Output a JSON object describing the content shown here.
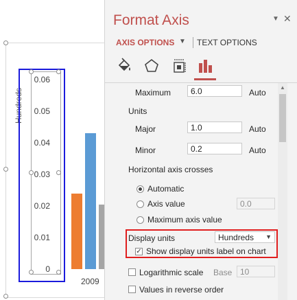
{
  "chart": {
    "axis_units_label": "Hundreds",
    "ticks": [
      "0.06",
      "0.05",
      "0.04",
      "0.03",
      "0.02",
      "0.01",
      "0"
    ],
    "category_label": "2009",
    "colors": {
      "orange": "#ed7d31",
      "blue": "#5b9bd5",
      "gray": "#a5a5a5"
    }
  },
  "pane": {
    "title": "Format Axis",
    "minimize_glyph": "▼",
    "close_glyph": "✕",
    "tabs": {
      "axis_options": "AXIS OPTIONS",
      "text_options": "TEXT OPTIONS"
    },
    "icons": [
      "fill-line-icon",
      "effects-pentagon-icon",
      "size-properties-icon",
      "axis-options-bars-icon"
    ],
    "maximum_label": "Maximum",
    "maximum_value": "6.0",
    "maximum_mode": "Auto",
    "units_heading": "Units",
    "major_label": "Major",
    "major_value": "1.0",
    "major_mode": "Auto",
    "minor_label": "Minor",
    "minor_value": "0.2",
    "minor_mode": "Auto",
    "crosses_heading": "Horizontal axis crosses",
    "radio_automatic": "Automatic",
    "radio_axis_value": "Axis value",
    "axis_value": "0.0",
    "radio_maximum": "Maximum axis value",
    "display_units_label": "Display units",
    "display_units_value": "Hundreds",
    "show_units_label": "Show display units label on chart",
    "log_scale_label": "Logarithmic scale",
    "base_label": "Base",
    "base_value": "10",
    "reverse_label": "Values in reverse order"
  }
}
